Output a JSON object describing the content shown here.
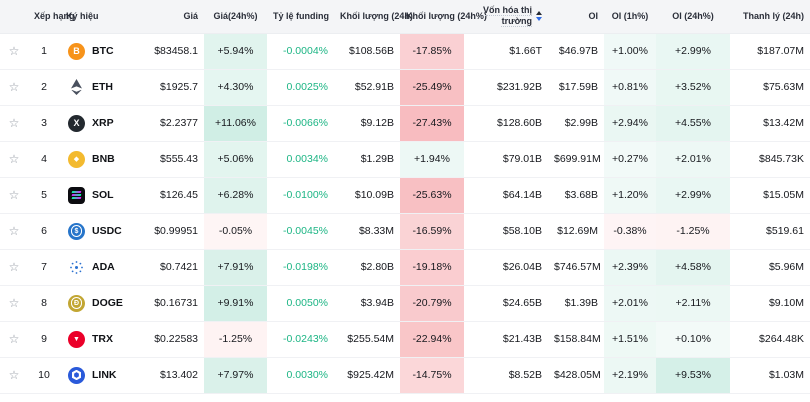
{
  "colors": {
    "heat_positive": "#0DA678",
    "heat_negative": "#EA3943",
    "funding_text": "#1CB584",
    "sort_caret_up": "#262B33",
    "sort_caret_down": "#2E6BE6",
    "header_bg": "#F4F5F7"
  },
  "glyphs": {
    "favorite_star": "☆"
  },
  "table": {
    "columns": [
      {
        "id": "favorite",
        "label": "",
        "align": "center",
        "kind": "star"
      },
      {
        "id": "rank",
        "label": "Xếp hạng",
        "align": "center",
        "kind": "text"
      },
      {
        "id": "symbol",
        "label": "Ký hiệu",
        "align": "left",
        "kind": "symbol"
      },
      {
        "id": "price",
        "label": "Giá",
        "align": "right",
        "kind": "text"
      },
      {
        "id": "price_chg_24h",
        "label": "Giá(24h%)",
        "align": "center",
        "kind": "heat"
      },
      {
        "id": "funding_rate",
        "label": "Tỷ lệ funding",
        "align": "right",
        "kind": "funding"
      },
      {
        "id": "volume_24h",
        "label": "Khối lượng (24h)",
        "align": "right",
        "kind": "text"
      },
      {
        "id": "volume_chg_24h",
        "label": "Khối lượng (24h%)",
        "align": "center",
        "kind": "heat"
      },
      {
        "id": "market_cap",
        "label": "Vốn hóa thị trường",
        "align": "right",
        "kind": "text",
        "sortable": true
      },
      {
        "id": "oi",
        "label": "OI",
        "align": "right",
        "kind": "text"
      },
      {
        "id": "oi_1h",
        "label": "OI (1h%)",
        "align": "center",
        "kind": "heat"
      },
      {
        "id": "oi_24h",
        "label": "OI (24h%)",
        "align": "center",
        "kind": "heat"
      },
      {
        "id": "liq_24h",
        "label": "Thanh lý (24h)",
        "align": "right",
        "kind": "text"
      }
    ],
    "rows": [
      {
        "rank": "1",
        "coin": "BTC",
        "price": "$83458.1",
        "price_chg_24h": "+5.94%",
        "funding_rate": "-0.0004%",
        "volume_24h": "$108.56B",
        "volume_chg_24h": "-17.85%",
        "market_cap": "$1.66T",
        "oi": "$46.97B",
        "oi_1h": "+1.00%",
        "oi_24h": "+2.99%",
        "liq_24h": "$187.07M"
      },
      {
        "rank": "2",
        "coin": "ETH",
        "price": "$1925.7",
        "price_chg_24h": "+4.30%",
        "funding_rate": "0.0025%",
        "volume_24h": "$52.91B",
        "volume_chg_24h": "-25.49%",
        "market_cap": "$231.92B",
        "oi": "$17.59B",
        "oi_1h": "+0.81%",
        "oi_24h": "+3.52%",
        "liq_24h": "$75.63M"
      },
      {
        "rank": "3",
        "coin": "XRP",
        "price": "$2.2377",
        "price_chg_24h": "+11.06%",
        "funding_rate": "-0.0066%",
        "volume_24h": "$9.12B",
        "volume_chg_24h": "-27.43%",
        "market_cap": "$128.60B",
        "oi": "$2.99B",
        "oi_1h": "+2.94%",
        "oi_24h": "+4.55%",
        "liq_24h": "$13.42M"
      },
      {
        "rank": "4",
        "coin": "BNB",
        "price": "$555.43",
        "price_chg_24h": "+5.06%",
        "funding_rate": "0.0034%",
        "volume_24h": "$1.29B",
        "volume_chg_24h": "+1.94%",
        "market_cap": "$79.01B",
        "oi": "$699.91M",
        "oi_1h": "+0.27%",
        "oi_24h": "+2.01%",
        "liq_24h": "$845.73K"
      },
      {
        "rank": "5",
        "coin": "SOL",
        "price": "$126.45",
        "price_chg_24h": "+6.28%",
        "funding_rate": "-0.0100%",
        "volume_24h": "$10.09B",
        "volume_chg_24h": "-25.63%",
        "market_cap": "$64.14B",
        "oi": "$3.68B",
        "oi_1h": "+1.20%",
        "oi_24h": "+2.99%",
        "liq_24h": "$15.05M"
      },
      {
        "rank": "6",
        "coin": "USDC",
        "price": "$0.99951",
        "price_chg_24h": "-0.05%",
        "funding_rate": "-0.0045%",
        "volume_24h": "$8.33M",
        "volume_chg_24h": "-16.59%",
        "market_cap": "$58.10B",
        "oi": "$12.69M",
        "oi_1h": "-0.38%",
        "oi_24h": "-1.25%",
        "liq_24h": "$519.61"
      },
      {
        "rank": "7",
        "coin": "ADA",
        "price": "$0.7421",
        "price_chg_24h": "+7.91%",
        "funding_rate": "-0.0198%",
        "volume_24h": "$2.80B",
        "volume_chg_24h": "-19.18%",
        "market_cap": "$26.04B",
        "oi": "$746.57M",
        "oi_1h": "+2.39%",
        "oi_24h": "+4.58%",
        "liq_24h": "$5.96M"
      },
      {
        "rank": "8",
        "coin": "DOGE",
        "price": "$0.16731",
        "price_chg_24h": "+9.91%",
        "funding_rate": "0.0050%",
        "volume_24h": "$3.94B",
        "volume_chg_24h": "-20.79%",
        "market_cap": "$24.65B",
        "oi": "$1.39B",
        "oi_1h": "+2.01%",
        "oi_24h": "+2.11%",
        "liq_24h": "$9.10M"
      },
      {
        "rank": "9",
        "coin": "TRX",
        "price": "$0.22583",
        "price_chg_24h": "-1.25%",
        "funding_rate": "-0.0243%",
        "volume_24h": "$255.54M",
        "volume_chg_24h": "-22.94%",
        "market_cap": "$21.43B",
        "oi": "$158.84M",
        "oi_1h": "+1.51%",
        "oi_24h": "+0.10%",
        "liq_24h": "$264.48K"
      },
      {
        "rank": "10",
        "coin": "LINK",
        "price": "$13.402",
        "price_chg_24h": "+7.97%",
        "funding_rate": "0.0030%",
        "volume_24h": "$925.42M",
        "volume_chg_24h": "-14.75%",
        "market_cap": "$8.52B",
        "oi": "$428.05M",
        "oi_1h": "+2.19%",
        "oi_24h": "+9.53%",
        "liq_24h": "$1.03M"
      }
    ]
  },
  "icons": {
    "BTC": {
      "type": "circle",
      "bg": "#F7931A",
      "fg": "#FFFFFF",
      "glyph": "B"
    },
    "ETH": {
      "type": "eth-diamond",
      "bg": "transparent",
      "fg": "#49505E"
    },
    "XRP": {
      "type": "circle",
      "bg": "#23292F",
      "fg": "#FFFFFF",
      "glyph": "X"
    },
    "BNB": {
      "type": "circle",
      "bg": "#F3BA2F",
      "fg": "#FFFFFF",
      "glyph": "◆",
      "small": true
    },
    "SOL": {
      "type": "sol-bars",
      "bg": "#0C0C10",
      "fg": "#00FFA3",
      "fg2": "#DC1FFF"
    },
    "USDC": {
      "type": "ring-circle",
      "bg": "#2775CA",
      "fg": "#FFFFFF",
      "glyph": "$"
    },
    "ADA": {
      "type": "ada-burst",
      "bg": "transparent",
      "fg": "#2A71D0"
    },
    "DOGE": {
      "type": "ring-circle",
      "bg": "#C2A633",
      "fg": "#FFFFFF",
      "glyph": "Ð"
    },
    "TRX": {
      "type": "circle",
      "bg": "#EB0029",
      "fg": "#FFFFFF",
      "glyph": "▼",
      "small": true
    },
    "LINK": {
      "type": "link-hex",
      "bg": "#2A5ADA",
      "fg": "#FFFFFF"
    }
  }
}
